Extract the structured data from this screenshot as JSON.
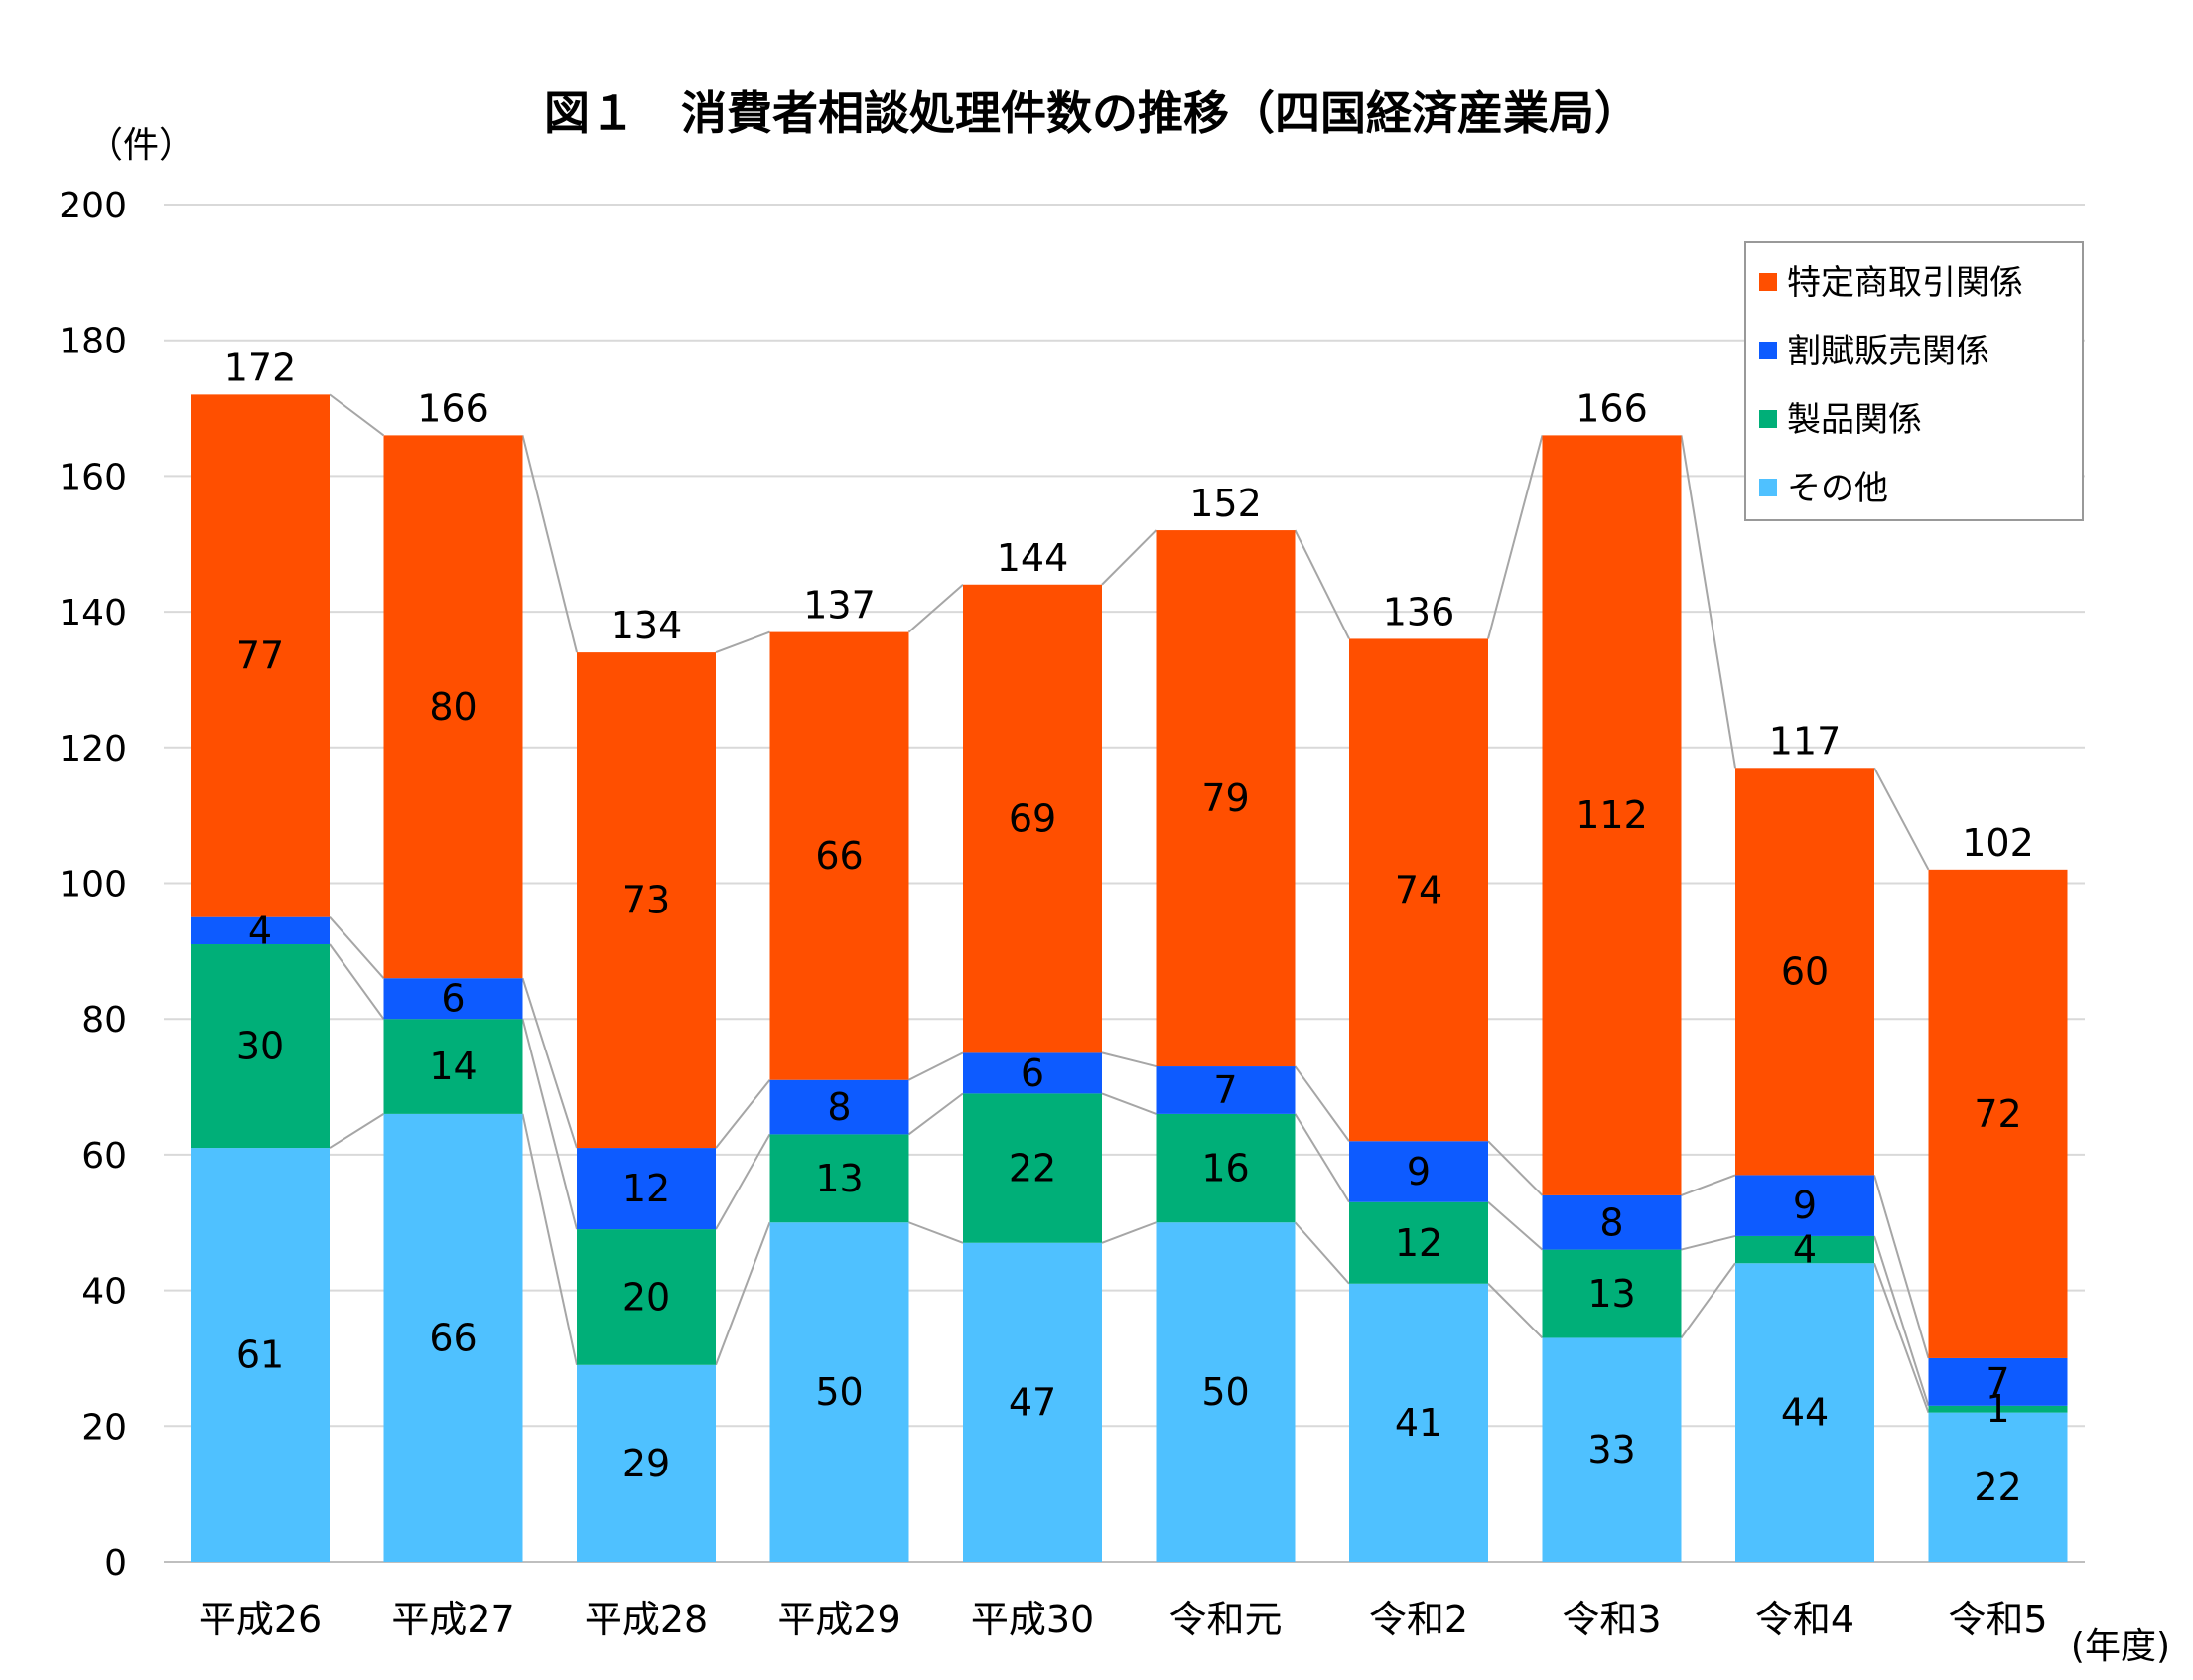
{
  "chart_data": {
    "type": "bar",
    "stacked": true,
    "title": "図１　消費者相談処理件数の推移（四国経済産業局）",
    "ylabel": "（件）",
    "xlabel": "(年度)",
    "ylim": [
      0,
      200
    ],
    "yticks": [
      0,
      20,
      40,
      60,
      80,
      100,
      120,
      140,
      160,
      180,
      200
    ],
    "grid": true,
    "legend_position": "top-right",
    "categories": [
      "平成26",
      "平成27",
      "平成28",
      "平成29",
      "平成30",
      "令和元",
      "令和2",
      "令和3",
      "令和4",
      "令和5"
    ],
    "series": [
      {
        "name": "その他",
        "color": "#4FC1FF",
        "values": [
          61,
          66,
          29,
          50,
          47,
          50,
          41,
          33,
          44,
          22
        ]
      },
      {
        "name": "製品関係",
        "color": "#00AF78",
        "values": [
          30,
          14,
          20,
          13,
          22,
          16,
          12,
          13,
          4,
          1
        ]
      },
      {
        "name": "割賦販売関係",
        "color": "#0D5BFF",
        "values": [
          4,
          6,
          12,
          8,
          6,
          7,
          9,
          8,
          9,
          7
        ]
      },
      {
        "name": "特定商取引関係",
        "color": "#FF4F00",
        "values": [
          77,
          80,
          73,
          66,
          69,
          79,
          74,
          112,
          60,
          72
        ]
      }
    ],
    "totals": [
      172,
      166,
      134,
      137,
      144,
      152,
      136,
      166,
      117,
      102
    ],
    "legend_order": [
      "特定商取引関係",
      "割賦販売関係",
      "製品関係",
      "その他"
    ]
  }
}
